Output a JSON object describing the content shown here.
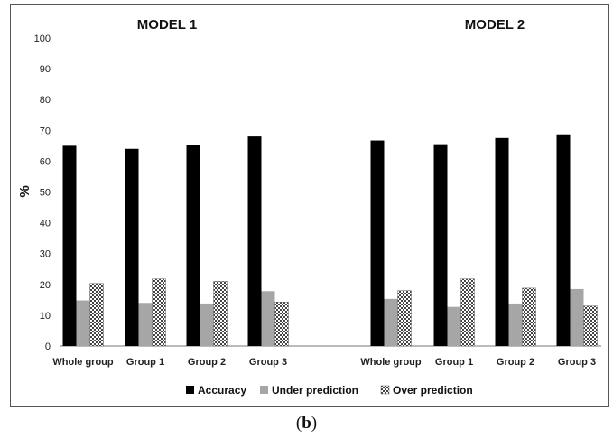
{
  "chart_data": {
    "type": "bar",
    "ylabel": "%",
    "ylim": [
      0,
      100
    ],
    "yticks": [
      0,
      10,
      20,
      30,
      40,
      50,
      60,
      70,
      80,
      90,
      100
    ],
    "legend": "bottom",
    "grid": false,
    "series_names": [
      "Accuracy",
      "Under prediction",
      "Over prediction"
    ],
    "series_colors": [
      "#000000",
      "#a6a6a6",
      "#cfcfcf"
    ],
    "panels": [
      {
        "title": "MODEL 1",
        "categories": [
          "Whole group",
          "Group 1",
          "Group 2",
          "Group 3"
        ],
        "series": [
          {
            "name": "Accuracy",
            "values": [
              65,
              64,
              65.3,
              68
            ]
          },
          {
            "name": "Under prediction",
            "values": [
              14.8,
              14,
              13.8,
              17.8
            ]
          },
          {
            "name": "Over prediction",
            "values": [
              20.3,
              21.8,
              21,
              14.3
            ]
          }
        ]
      },
      {
        "title": "MODEL 2",
        "categories": [
          "Whole group",
          "Group 1",
          "Group 2",
          "Group 3"
        ],
        "series": [
          {
            "name": "Accuracy",
            "values": [
              66.7,
              65.5,
              67.5,
              68.7
            ]
          },
          {
            "name": "Under prediction",
            "values": [
              15.3,
              12.7,
              13.8,
              18.5
            ]
          },
          {
            "name": "Over prediction",
            "values": [
              18,
              21.8,
              18.8,
              13
            ]
          }
        ]
      }
    ]
  },
  "caption": {
    "open": "(",
    "letter": "b",
    "close": ")"
  }
}
